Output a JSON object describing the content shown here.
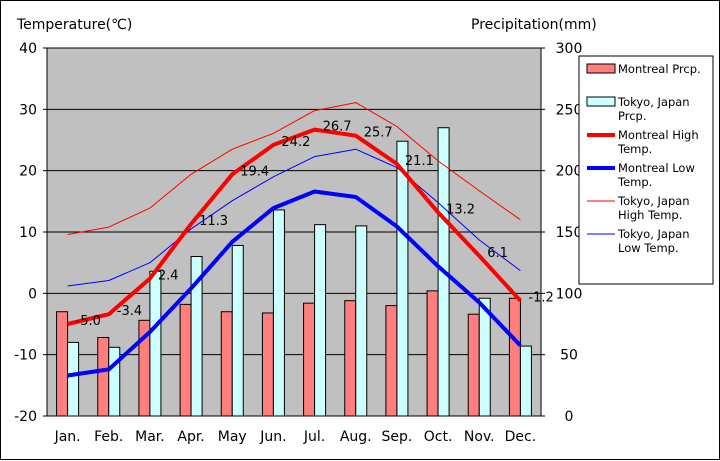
{
  "chart_data": {
    "type": "bar+line",
    "left_axis_title": "Temperature(℃)",
    "right_axis_title": "Precipitation(mm)",
    "ylim_left": [
      -20,
      40
    ],
    "ylim_right": [
      0,
      300
    ],
    "yticks_left": [
      "40",
      "30",
      "20",
      "10",
      "0",
      "-10",
      "-20"
    ],
    "yticks_right": [
      "300",
      "250",
      "200",
      "150",
      "100",
      "50",
      "0"
    ],
    "grid": true,
    "legend_position": "right",
    "categories": [
      "Jan.",
      "Feb.",
      "Mar.",
      "Apr.",
      "May",
      "Jun.",
      "Jul.",
      "Aug.",
      "Sep.",
      "Oct.",
      "Nov.",
      "Dec."
    ],
    "series": [
      {
        "name": "Montreal Prcp.",
        "kind": "bar",
        "axis": "right",
        "color": "#ff7f7f",
        "values": [
          85,
          64,
          78,
          91,
          85,
          84,
          92,
          94,
          90,
          102,
          83,
          96
        ]
      },
      {
        "name": "Tokyo, Japan Prcp.",
        "kind": "bar",
        "axis": "right",
        "color": "#ccffff",
        "values": [
          60,
          56,
          118,
          130,
          139,
          168,
          156,
          155,
          224,
          235,
          96,
          57
        ]
      },
      {
        "name": "Montreal High Temp.",
        "kind": "line",
        "axis": "left",
        "color": "#ff0000",
        "width": 4,
        "values": [
          -5.0,
          -3.4,
          2.4,
          11.3,
          19.4,
          24.2,
          26.7,
          25.7,
          21.1,
          13.2,
          6.1,
          -1.2
        ],
        "labels": [
          "-5.0",
          "-3.4",
          "2.4",
          "11.3",
          "19.4",
          "24.2",
          "26.7",
          "25.7",
          "21.1",
          "13.2",
          "6.1",
          "-1.2"
        ]
      },
      {
        "name": "Montreal Low Temp.",
        "kind": "line",
        "axis": "left",
        "color": "#0000ff",
        "width": 4,
        "values": [
          -13.4,
          -12.4,
          -6.3,
          0.8,
          8.4,
          13.9,
          16.6,
          15.7,
          10.9,
          4.4,
          -1.5,
          -8.5
        ]
      },
      {
        "name": "Tokyo, Japan High Temp.",
        "kind": "line",
        "axis": "left",
        "color": "#ff0000",
        "width": 1,
        "values": [
          9.6,
          10.8,
          13.9,
          19.4,
          23.5,
          26.1,
          29.8,
          31.1,
          27.2,
          21.6,
          16.7,
          12.0
        ]
      },
      {
        "name": "Tokyo, Japan Low Temp.",
        "kind": "line",
        "axis": "left",
        "color": "#0000ff",
        "width": 1,
        "values": [
          1.2,
          2.1,
          5.0,
          10.5,
          15.1,
          19.0,
          22.3,
          23.5,
          20.5,
          14.8,
          8.7,
          3.7
        ]
      }
    ]
  }
}
